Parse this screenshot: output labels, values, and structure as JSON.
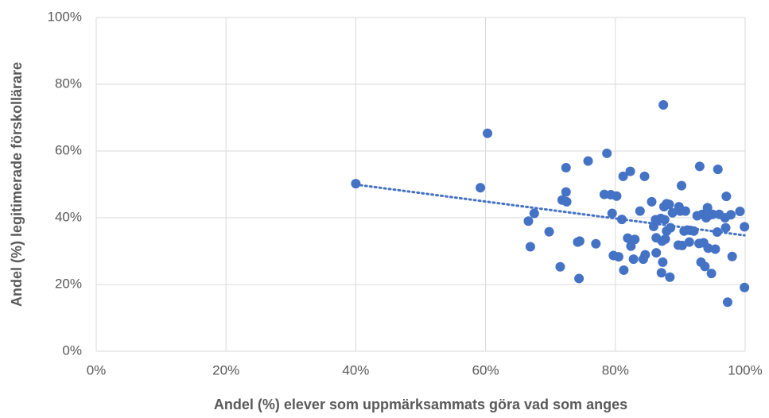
{
  "chart_data": {
    "type": "scatter",
    "x_label": "Andel (%) elever som uppmärksammats göra vad som anges",
    "y_label": "Andel (%) legitimerade förskollärare",
    "color": "#4472c4",
    "grid": true,
    "trendline": true,
    "xlim": [
      0,
      100
    ],
    "ylim": [
      0,
      100
    ],
    "xticks": [
      {
        "value": 0,
        "label": "0%"
      },
      {
        "value": 20,
        "label": "20%"
      },
      {
        "value": 40,
        "label": "40%"
      },
      {
        "value": 60,
        "label": "60%"
      },
      {
        "value": 80,
        "label": "80%"
      },
      {
        "value": 100,
        "label": "100%"
      }
    ],
    "yticks": [
      {
        "value": 0,
        "label": "0%"
      },
      {
        "value": 20,
        "label": "20%"
      },
      {
        "value": 40,
        "label": "40%"
      },
      {
        "value": 60,
        "label": "60%"
      },
      {
        "value": 80,
        "label": "80%"
      },
      {
        "value": 100,
        "label": "100%"
      }
    ],
    "x": [
      40,
      59.2,
      60.3,
      66.6,
      67.5,
      66.9,
      69.8,
      71.5,
      71.8,
      72.4,
      72.4,
      72.5,
      74.2,
      74.4,
      74.5,
      75.8,
      77,
      78.3,
      78.7,
      79.3,
      79.5,
      79.7,
      80.2,
      80.5,
      81,
      81.2,
      81.3,
      81.9,
      82.3,
      82.4,
      82.8,
      83,
      83.8,
      84.3,
      84.5,
      84.6,
      85.6,
      85.9,
      86.2,
      86.3,
      86.3,
      87,
      87.1,
      87.2,
      87.3,
      87.4,
      87.5,
      87.6,
      87.7,
      87.9,
      87.9,
      88.3,
      88.4,
      88.5,
      88.8,
      89.7,
      89.8,
      90,
      90.2,
      90.3,
      90.6,
      90.8,
      91.1,
      91.4,
      91.6,
      92.1,
      92.6,
      92.9,
      93,
      93.2,
      93.4,
      93.6,
      93.8,
      94,
      94.2,
      94.3,
      94.5,
      94.8,
      95,
      95.4,
      95.7,
      95.8,
      96,
      96.9,
      97,
      97.1,
      97.3,
      97.8,
      98,
      99.2,
      99.9,
      99.9
    ],
    "values": [
      50.2,
      49,
      65.3,
      39,
      41.3,
      31.3,
      35.8,
      25.3,
      45.3,
      47.7,
      55,
      44.8,
      32.7,
      21.8,
      33,
      57,
      32.2,
      47,
      59.3,
      46.9,
      41.3,
      28.7,
      46.5,
      28.3,
      39.5,
      52.4,
      24.3,
      33.9,
      53.9,
      31.5,
      27.6,
      33.5,
      42,
      27.6,
      52.4,
      28.9,
      44.8,
      37.4,
      39.4,
      34,
      29.5,
      39.8,
      23.5,
      33,
      26.7,
      73.8,
      43.3,
      39.4,
      33.6,
      36,
      44.2,
      44,
      22.2,
      37,
      41.5,
      31.8,
      43.3,
      42,
      49.6,
      31.7,
      36,
      42,
      36.3,
      32.7,
      36.2,
      36,
      40.6,
      32.3,
      55.4,
      26.7,
      41,
      32.5,
      25.4,
      40,
      43,
      30.9,
      40.8,
      23.3,
      41,
      30.6,
      35.7,
      54.5,
      41,
      40,
      37,
      46.4,
      14.7,
      40.9,
      28.4,
      41.9,
      19.1,
      37.3
    ]
  }
}
